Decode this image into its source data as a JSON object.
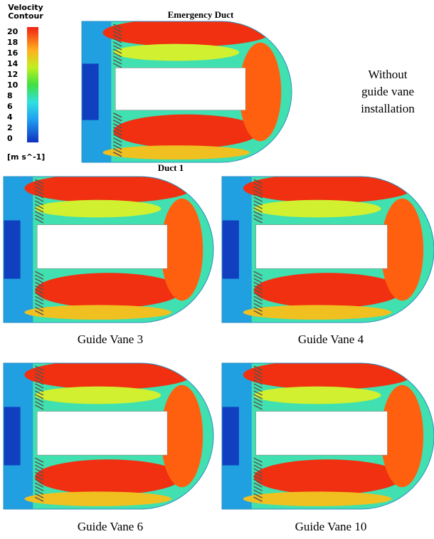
{
  "legend": {
    "title": "Velocity Contour",
    "ticks": [
      20,
      18,
      16,
      14,
      12,
      10,
      8,
      6,
      4,
      2,
      0
    ],
    "unit": "[m s^-1]"
  },
  "top": {
    "title": "Emergency Duct",
    "note": "Without guide vane installation"
  },
  "section_title": "Duct 1",
  "panels": [
    {
      "caption": "Guide Vane 3"
    },
    {
      "caption": "Guide Vane 4"
    },
    {
      "caption": "Guide Vane 6"
    },
    {
      "caption": "Guide Vane 10"
    }
  ]
}
